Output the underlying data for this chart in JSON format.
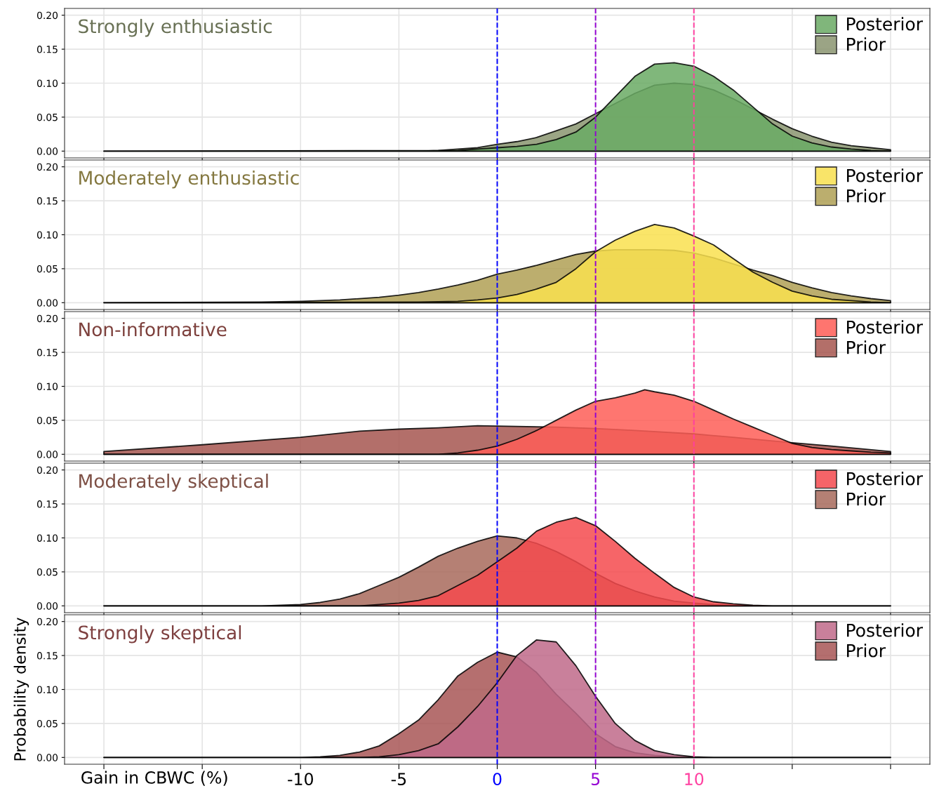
{
  "chart_data": [
    {
      "type": "area",
      "title": "Strongly enthusiastic",
      "xlim": [
        -22,
        22
      ],
      "ylim": [
        -0.01,
        0.21
      ],
      "yticks": [
        {
          "value": 0,
          "label": "0.00"
        },
        {
          "value": 0.05,
          "label": "0.05"
        },
        {
          "value": 0.1,
          "label": "0.10"
        },
        {
          "value": 0.15,
          "label": "0.15"
        },
        {
          "value": 0.2,
          "label": "0.20"
        }
      ],
      "xticks": [
        {
          "value": -20,
          "label": null
        },
        {
          "value": -15,
          "label": null
        },
        {
          "value": -10,
          "label": null
        },
        {
          "value": -5,
          "label": null
        },
        {
          "value": 0,
          "label": null
        },
        {
          "value": 5,
          "label": null
        },
        {
          "value": 10,
          "label": null
        },
        {
          "value": 15,
          "label": null
        },
        {
          "value": 20,
          "label": null
        }
      ],
      "tick_labels": "y",
      "grid": true,
      "legend": "top right",
      "ref_lines": [
        {
          "axis": "x",
          "value": 0,
          "color": "#0000ff",
          "line_style": "dashed"
        },
        {
          "axis": "x",
          "value": 5,
          "color": "#9400d3",
          "line_style": "dashed"
        },
        {
          "axis": "x",
          "value": 10,
          "color": "#ff3fa0",
          "line_style": "dashed"
        }
      ],
      "series": [
        {
          "name": "Posterior",
          "color": "#6aaa64",
          "x": [
            -20,
            -2,
            -1,
            0,
            1,
            2,
            3,
            4,
            5,
            6,
            7,
            8,
            9,
            10,
            11,
            12,
            13,
            14,
            15,
            16,
            17,
            18,
            19,
            20
          ],
          "values": [
            0,
            0.001,
            0.003,
            0.005,
            0.007,
            0.01,
            0.017,
            0.028,
            0.05,
            0.08,
            0.11,
            0.128,
            0.13,
            0.125,
            0.11,
            0.09,
            0.065,
            0.04,
            0.022,
            0.012,
            0.006,
            0.003,
            0.001,
            0
          ]
        },
        {
          "name": "Prior",
          "color": "#8a9570",
          "x": [
            -20,
            -4,
            -3,
            -2,
            -1,
            0,
            1,
            2,
            3,
            4,
            5,
            6,
            7,
            8,
            9,
            10,
            11,
            12,
            13,
            14,
            15,
            16,
            17,
            18,
            19,
            20
          ],
          "values": [
            0,
            0,
            0.001,
            0.003,
            0.005,
            0.01,
            0.014,
            0.02,
            0.03,
            0.04,
            0.055,
            0.07,
            0.085,
            0.097,
            0.1,
            0.098,
            0.09,
            0.077,
            0.062,
            0.047,
            0.033,
            0.022,
            0.013,
            0.008,
            0.005,
            0.002
          ]
        }
      ]
    },
    {
      "type": "area",
      "title": "Moderately enthusiastic",
      "xlim": [
        -22,
        22
      ],
      "ylim": [
        -0.01,
        0.21
      ],
      "yticks": [
        {
          "value": 0,
          "label": "0.00"
        },
        {
          "value": 0.05,
          "label": "0.05"
        },
        {
          "value": 0.1,
          "label": "0.10"
        },
        {
          "value": 0.15,
          "label": "0.15"
        },
        {
          "value": 0.2,
          "label": "0.20"
        }
      ],
      "xticks": [
        {
          "value": -20,
          "label": null
        },
        {
          "value": -15,
          "label": null
        },
        {
          "value": -10,
          "label": null
        },
        {
          "value": -5,
          "label": null
        },
        {
          "value": 0,
          "label": null
        },
        {
          "value": 5,
          "label": null
        },
        {
          "value": 10,
          "label": null
        },
        {
          "value": 15,
          "label": null
        },
        {
          "value": 20,
          "label": null
        }
      ],
      "tick_labels": "y",
      "grid": true,
      "legend": "top right",
      "ref_lines": [
        {
          "axis": "x",
          "value": 0,
          "color": "#0000ff",
          "line_style": "dashed"
        },
        {
          "axis": "x",
          "value": 5,
          "color": "#9400d3",
          "line_style": "dashed"
        },
        {
          "axis": "x",
          "value": 10,
          "color": "#ff3fa0",
          "line_style": "dashed"
        }
      ],
      "series": [
        {
          "name": "Posterior",
          "color": "#f9e04f",
          "x": [
            -20,
            -4,
            -2,
            -1,
            0,
            1,
            2,
            3,
            4,
            5,
            6,
            7,
            8,
            9,
            10,
            11,
            12,
            13,
            14,
            15,
            16,
            17,
            18,
            19,
            20
          ],
          "values": [
            0,
            0.001,
            0.002,
            0.004,
            0.007,
            0.012,
            0.02,
            0.03,
            0.05,
            0.075,
            0.092,
            0.105,
            0.115,
            0.11,
            0.098,
            0.085,
            0.065,
            0.045,
            0.03,
            0.017,
            0.01,
            0.005,
            0.003,
            0.001,
            0
          ]
        },
        {
          "name": "Prior",
          "color": "#b0a055",
          "x": [
            -20,
            -12,
            -10,
            -8,
            -6,
            -5,
            -4,
            -3,
            -2,
            -1,
            0,
            1,
            2,
            3,
            4,
            5,
            6,
            7,
            8,
            9,
            10,
            11,
            12,
            13,
            14,
            15,
            16,
            17,
            18,
            19,
            20
          ],
          "values": [
            0,
            0.001,
            0.002,
            0.004,
            0.008,
            0.011,
            0.015,
            0.02,
            0.026,
            0.033,
            0.042,
            0.048,
            0.055,
            0.063,
            0.071,
            0.076,
            0.078,
            0.078,
            0.078,
            0.077,
            0.073,
            0.066,
            0.057,
            0.048,
            0.04,
            0.03,
            0.022,
            0.015,
            0.01,
            0.006,
            0.003
          ]
        }
      ]
    },
    {
      "type": "area",
      "title": "Non-informative",
      "xlim": [
        -22,
        22
      ],
      "ylim": [
        -0.01,
        0.21
      ],
      "yticks": [
        {
          "value": 0,
          "label": "0.00"
        },
        {
          "value": 0.05,
          "label": "0.05"
        },
        {
          "value": 0.1,
          "label": "0.10"
        },
        {
          "value": 0.15,
          "label": "0.15"
        },
        {
          "value": 0.2,
          "label": "0.20"
        }
      ],
      "xticks": [
        {
          "value": -20,
          "label": null
        },
        {
          "value": -15,
          "label": null
        },
        {
          "value": -10,
          "label": null
        },
        {
          "value": -5,
          "label": null
        },
        {
          "value": 0,
          "label": null
        },
        {
          "value": 5,
          "label": null
        },
        {
          "value": 10,
          "label": null
        },
        {
          "value": 15,
          "label": null
        },
        {
          "value": 20,
          "label": null
        }
      ],
      "tick_labels": "y",
      "grid": true,
      "legend": "top right",
      "ref_lines": [
        {
          "axis": "x",
          "value": 0,
          "color": "#0000ff",
          "line_style": "dashed"
        },
        {
          "axis": "x",
          "value": 5,
          "color": "#9400d3",
          "line_style": "dashed"
        },
        {
          "axis": "x",
          "value": 10,
          "color": "#ff3fa0",
          "line_style": "dashed"
        }
      ],
      "series": [
        {
          "name": "Posterior",
          "color": "#fe5e57",
          "x": [
            -20,
            -3,
            -2,
            -1,
            0,
            1,
            2,
            3,
            4,
            5,
            6,
            7,
            7.5,
            8,
            9,
            10,
            11,
            12,
            13,
            14,
            15,
            16,
            17,
            18,
            19,
            20
          ],
          "values": [
            0,
            0,
            0.002,
            0.006,
            0.012,
            0.022,
            0.035,
            0.05,
            0.065,
            0.078,
            0.083,
            0.09,
            0.095,
            0.092,
            0.087,
            0.078,
            0.065,
            0.052,
            0.04,
            0.028,
            0.016,
            0.01,
            0.007,
            0.005,
            0.003,
            0.002
          ]
        },
        {
          "name": "Prior",
          "color": "#a65650",
          "x": [
            -20,
            -15,
            -10,
            -7,
            -5,
            -3,
            -1,
            1,
            3,
            5,
            7,
            10,
            12,
            15,
            17,
            20
          ],
          "values": [
            0.004,
            0.014,
            0.025,
            0.034,
            0.037,
            0.039,
            0.042,
            0.041,
            0.04,
            0.038,
            0.035,
            0.03,
            0.025,
            0.017,
            0.012,
            0.004
          ]
        }
      ]
    },
    {
      "type": "area",
      "title": "Moderately skeptical",
      "xlim": [
        -22,
        22
      ],
      "ylim": [
        -0.01,
        0.21
      ],
      "yticks": [
        {
          "value": 0,
          "label": "0.00"
        },
        {
          "value": 0.05,
          "label": "0.05"
        },
        {
          "value": 0.1,
          "label": "0.10"
        },
        {
          "value": 0.15,
          "label": "0.15"
        },
        {
          "value": 0.2,
          "label": "0.20"
        }
      ],
      "xticks": [
        {
          "value": -20,
          "label": null
        },
        {
          "value": -15,
          "label": null
        },
        {
          "value": -10,
          "label": null
        },
        {
          "value": -5,
          "label": null
        },
        {
          "value": 0,
          "label": null
        },
        {
          "value": 5,
          "label": null
        },
        {
          "value": 10,
          "label": null
        },
        {
          "value": 15,
          "label": null
        },
        {
          "value": 20,
          "label": null
        }
      ],
      "tick_labels": "y",
      "grid": true,
      "legend": "top right",
      "ref_lines": [
        {
          "axis": "x",
          "value": 0,
          "color": "#0000ff",
          "line_style": "dashed"
        },
        {
          "axis": "x",
          "value": 5,
          "color": "#9400d3",
          "line_style": "dashed"
        },
        {
          "axis": "x",
          "value": 10,
          "color": "#ff3fa0",
          "line_style": "dashed"
        }
      ],
      "series": [
        {
          "name": "Posterior",
          "color": "#f44a4e",
          "x": [
            -20,
            -7,
            -6,
            -5,
            -4,
            -3,
            -2,
            -1,
            0,
            1,
            2,
            3,
            4,
            5,
            6,
            7,
            8,
            9,
            10,
            11,
            12,
            13,
            14,
            20
          ],
          "values": [
            0,
            0,
            0.002,
            0.004,
            0.008,
            0.015,
            0.03,
            0.045,
            0.065,
            0.085,
            0.11,
            0.123,
            0.13,
            0.118,
            0.095,
            0.07,
            0.048,
            0.027,
            0.013,
            0.006,
            0.003,
            0.001,
            0,
            0
          ]
        },
        {
          "name": "Prior",
          "color": "#a86a5c",
          "x": [
            -20,
            -12,
            -10,
            -9,
            -8,
            -7,
            -6,
            -5,
            -4,
            -3,
            -2,
            -1,
            0,
            1,
            2,
            3,
            4,
            5,
            6,
            7,
            8,
            9,
            10,
            11,
            12,
            13,
            20
          ],
          "values": [
            0,
            0,
            0.002,
            0.005,
            0.01,
            0.018,
            0.03,
            0.042,
            0.057,
            0.073,
            0.085,
            0.095,
            0.103,
            0.1,
            0.092,
            0.08,
            0.065,
            0.048,
            0.033,
            0.022,
            0.013,
            0.007,
            0.004,
            0.002,
            0.001,
            0,
            0
          ]
        }
      ]
    },
    {
      "type": "area",
      "title": "Strongly skeptical",
      "ylabel": "Probability density",
      "xlabel": "Gain in CBWC (%)",
      "xlim": [
        -22,
        22
      ],
      "ylim": [
        -0.01,
        0.21
      ],
      "yticks": [
        {
          "value": 0,
          "label": "0.00"
        },
        {
          "value": 0.05,
          "label": "0.05"
        },
        {
          "value": 0.1,
          "label": "0.10"
        },
        {
          "value": 0.15,
          "label": "0.15"
        },
        {
          "value": 0.2,
          "label": "0.20"
        }
      ],
      "xticks": [
        {
          "value": -20,
          "label": null
        },
        {
          "value": -15,
          "label": null
        },
        {
          "value": -10,
          "label": "-10"
        },
        {
          "value": -5,
          "label": "-5"
        },
        {
          "value": 0,
          "label": "0"
        },
        {
          "value": 5,
          "label": "5"
        },
        {
          "value": 10,
          "label": "10"
        },
        {
          "value": 15,
          "label": null
        },
        {
          "value": 20,
          "label": null
        }
      ],
      "grid": true,
      "legend": "top right",
      "ref_lines": [
        {
          "axis": "x",
          "value": 0,
          "color": "#0000ff",
          "line_style": "dashed"
        },
        {
          "axis": "x",
          "value": 5,
          "color": "#9400d3",
          "line_style": "dashed"
        },
        {
          "axis": "x",
          "value": 10,
          "color": "#ff3fa0",
          "line_style": "dashed"
        }
      ],
      "series": [
        {
          "name": "Posterior",
          "color": "#c06a8a",
          "x": [
            -20,
            -7,
            -6,
            -5,
            -4,
            -3,
            -2,
            -1,
            0,
            1,
            2,
            3,
            4,
            5,
            6,
            7,
            8,
            9,
            10,
            11,
            20
          ],
          "values": [
            0,
            0,
            0.001,
            0.004,
            0.01,
            0.02,
            0.045,
            0.075,
            0.11,
            0.15,
            0.173,
            0.17,
            0.135,
            0.09,
            0.05,
            0.025,
            0.01,
            0.004,
            0.001,
            0,
            0
          ]
        },
        {
          "name": "Prior",
          "color": "#a85656",
          "x": [
            -20,
            -10,
            -9,
            -8,
            -7,
            -6,
            -5,
            -4,
            -3,
            -2,
            -1,
            0,
            1,
            2,
            3,
            4,
            5,
            6,
            7,
            8,
            9,
            10,
            20
          ],
          "values": [
            0,
            0,
            0.001,
            0.003,
            0.008,
            0.017,
            0.035,
            0.055,
            0.085,
            0.12,
            0.14,
            0.155,
            0.148,
            0.125,
            0.093,
            0.065,
            0.035,
            0.016,
            0.007,
            0.003,
            0.001,
            0,
            0
          ]
        }
      ]
    }
  ]
}
